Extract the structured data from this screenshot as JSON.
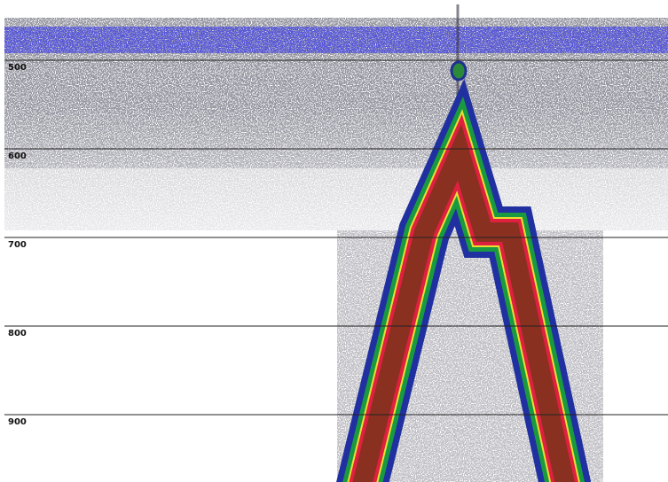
{
  "chart_data": {
    "type": "echogram",
    "ylim": [
      432,
      976
    ],
    "yticks": [
      500,
      600,
      700,
      800,
      900
    ],
    "grid": true
  }
}
